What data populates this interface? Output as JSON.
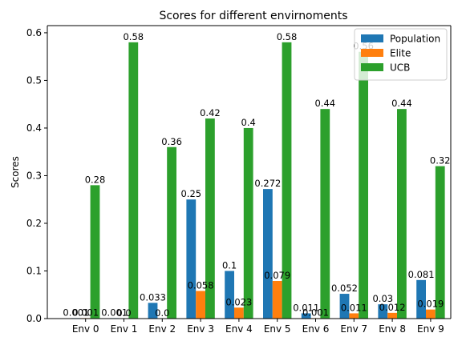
{
  "chart_data": {
    "type": "bar",
    "title": "Scores for different envirnoments",
    "xlabel": "",
    "ylabel": "Scores",
    "ylim": [
      0,
      0.615
    ],
    "yticks": [
      0.0,
      0.1,
      0.2,
      0.3,
      0.4,
      0.5,
      0.6
    ],
    "ytick_labels": [
      "0.0",
      "0.1",
      "0.2",
      "0.3",
      "0.4",
      "0.5",
      "0.6"
    ],
    "grid": false,
    "legend_position": "top-right",
    "categories": [
      "Env 0",
      "Env 1",
      "Env 2",
      "Env 3",
      "Env 4",
      "Env 5",
      "Env 6",
      "Env 7",
      "Env 8",
      "Env 9"
    ],
    "series": [
      {
        "name": "Population",
        "color": "#1f77b4",
        "values": [
          0.001,
          0.001,
          0.033,
          0.25,
          0.1,
          0.272,
          0.011,
          0.052,
          0.03,
          0.081
        ],
        "labels": [
          "0.001",
          "0.001",
          "0.033",
          "0.25",
          "0.1",
          "0.272",
          "0.011",
          "0.052",
          "0.03",
          "0.081"
        ]
      },
      {
        "name": "Elite",
        "color": "#ff7f0e",
        "values": [
          0.001,
          0.0,
          0.0,
          0.058,
          0.023,
          0.079,
          0.001,
          0.011,
          0.012,
          0.019
        ],
        "labels": [
          "0.001",
          "0.0",
          "0.0",
          "0.058",
          "0.023",
          "0.079",
          "0.001",
          "0.011",
          "0.012",
          "0.019"
        ]
      },
      {
        "name": "UCB",
        "color": "#2ca02c",
        "values": [
          0.28,
          0.58,
          0.36,
          0.42,
          0.4,
          0.58,
          0.44,
          0.56,
          0.44,
          0.32
        ],
        "labels": [
          "0.28",
          "0.58",
          "0.36",
          "0.42",
          "0.4",
          "0.58",
          "0.44",
          "0.56",
          "0.44",
          "0.32"
        ]
      }
    ]
  }
}
